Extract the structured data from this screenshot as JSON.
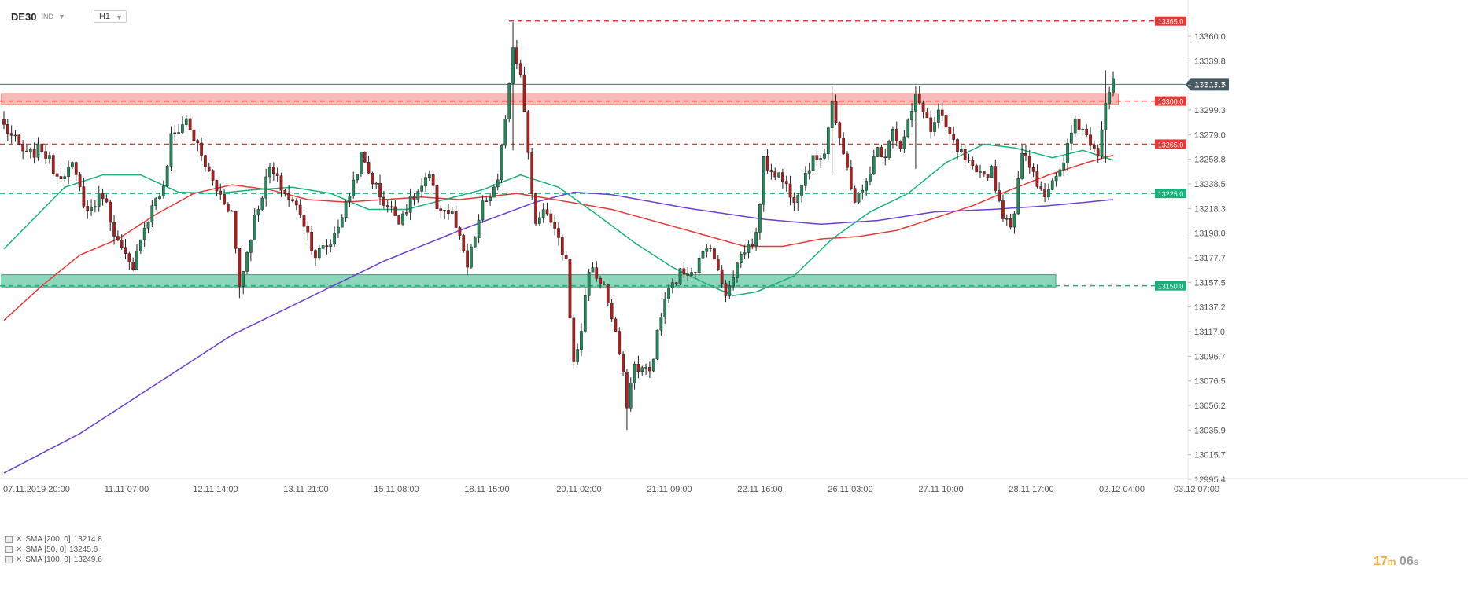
{
  "toolbar": {
    "symbol": "DE30",
    "badge": "IND",
    "timeframe": "H1"
  },
  "timer": {
    "minutes": "17",
    "m": "m",
    "seconds": "06",
    "s": "s"
  },
  "legend": [
    {
      "label": "SMA [200, 0]",
      "value": "13214.8",
      "color": "#6c3fd1"
    },
    {
      "label": "SMA [50, 0]",
      "value": "13245.6",
      "color": "#e53935"
    },
    {
      "label": "SMA [100, 0]",
      "value": "13249.6",
      "color": "#19b07a"
    }
  ],
  "chart_data": {
    "type": "candlestick",
    "symbol": "DE30",
    "timeframe": "H1",
    "y_ticks": [
      "13360.0",
      "13339.8",
      "13319.5",
      "13299.3",
      "13279.0",
      "13258.8",
      "13238.5",
      "13218.3",
      "13198.0",
      "13177.7",
      "13157.5",
      "13137.2",
      "13117.0",
      "13096.7",
      "13076.5",
      "13056.2",
      "13035.9",
      "13015.7",
      "12995.4"
    ],
    "x_ticks": [
      "07.11.2019  20:00",
      "11.11  07:00",
      "12.11  14:00",
      "13.11  21:00",
      "15.11  08:00",
      "18.11  15:00",
      "20.11  02:00",
      "21.11  09:00",
      "22.11  16:00",
      "26.11  03:00",
      "27.11  10:00",
      "28.11  17:00",
      "02.12  04:00",
      "03.12  07:00"
    ],
    "ylim": [
      12995.4,
      13368
    ],
    "last_price": {
      "value": 13313.5,
      "label": "13313.5"
    },
    "levels": [
      {
        "value": 13365.0,
        "label": "13365.0",
        "color": "#e53935"
      },
      {
        "value": 13300.0,
        "label": "13300.0",
        "color": "#e53935"
      },
      {
        "value": 13265.0,
        "label": "13265.0",
        "color": "#e53935"
      },
      {
        "value": 13225.0,
        "label": "13225.0",
        "color": "#19b07a"
      },
      {
        "value": 13150.0,
        "label": "13150.0",
        "color": "#19b07a"
      }
    ],
    "zones": [
      {
        "from": 13297,
        "to": 13306,
        "color": "#e53935",
        "opacity": 0.35
      },
      {
        "from": 13149,
        "to": 13159,
        "color": "#19b07a",
        "opacity": 0.5
      }
    ],
    "anchors": [
      [
        0,
        13280
      ],
      [
        6,
        13255
      ],
      [
        10,
        13262
      ],
      [
        14,
        13240
      ],
      [
        18,
        13246
      ],
      [
        22,
        13210
      ],
      [
        26,
        13225
      ],
      [
        30,
        13185
      ],
      [
        34,
        13160
      ],
      [
        36,
        13192
      ],
      [
        38,
        13205
      ],
      [
        40,
        13222
      ],
      [
        42,
        13228
      ],
      [
        44,
        13270
      ],
      [
        48,
        13285
      ],
      [
        52,
        13255
      ],
      [
        56,
        13228
      ],
      [
        60,
        13210
      ],
      [
        62,
        13150
      ],
      [
        66,
        13205
      ],
      [
        70,
        13245
      ],
      [
        74,
        13225
      ],
      [
        78,
        13210
      ],
      [
        82,
        13175
      ],
      [
        86,
        13185
      ],
      [
        90,
        13215
      ],
      [
        94,
        13255
      ],
      [
        96,
        13242
      ],
      [
        100,
        13218
      ],
      [
        104,
        13205
      ],
      [
        108,
        13222
      ],
      [
        112,
        13238
      ],
      [
        114,
        13215
      ],
      [
        118,
        13208
      ],
      [
        122,
        13165
      ],
      [
        126,
        13215
      ],
      [
        130,
        13232
      ],
      [
        134,
        13345
      ],
      [
        136,
        13325
      ],
      [
        138,
        13255
      ],
      [
        140,
        13200
      ],
      [
        142,
        13215
      ],
      [
        146,
        13185
      ],
      [
        148,
        13170
      ],
      [
        150,
        13085
      ],
      [
        152,
        13115
      ],
      [
        154,
        13165
      ],
      [
        158,
        13150
      ],
      [
        162,
        13095
      ],
      [
        164,
        13055
      ],
      [
        166,
        13085
      ],
      [
        170,
        13080
      ],
      [
        174,
        13140
      ],
      [
        178,
        13160
      ],
      [
        182,
        13165
      ],
      [
        186,
        13185
      ],
      [
        188,
        13160
      ],
      [
        190,
        13145
      ],
      [
        194,
        13175
      ],
      [
        198,
        13190
      ],
      [
        200,
        13250
      ],
      [
        204,
        13240
      ],
      [
        208,
        13222
      ],
      [
        212,
        13248
      ],
      [
        216,
        13260
      ],
      [
        218,
        13300
      ],
      [
        220,
        13265
      ],
      [
        222,
        13245
      ],
      [
        224,
        13220
      ],
      [
        226,
        13225
      ],
      [
        228,
        13245
      ],
      [
        230,
        13260
      ],
      [
        232,
        13258
      ],
      [
        234,
        13280
      ],
      [
        236,
        13260
      ],
      [
        240,
        13302
      ],
      [
        242,
        13295
      ],
      [
        244,
        13275
      ],
      [
        246,
        13290
      ],
      [
        250,
        13265
      ],
      [
        254,
        13248
      ],
      [
        256,
        13238
      ],
      [
        258,
        13240
      ],
      [
        260,
        13245
      ],
      [
        262,
        13218
      ],
      [
        264,
        13200
      ],
      [
        266,
        13205
      ],
      [
        268,
        13262
      ],
      [
        270,
        13250
      ],
      [
        272,
        13235
      ],
      [
        274,
        13225
      ],
      [
        278,
        13240
      ],
      [
        282,
        13285
      ],
      [
        286,
        13268
      ],
      [
        288,
        13260
      ],
      [
        290,
        13300
      ],
      [
        292,
        13318
      ]
    ],
    "spikes": [
      [
        134,
        13364,
        13260
      ],
      [
        218,
        13312,
        13240
      ],
      [
        240,
        13312,
        13245
      ],
      [
        290,
        13325,
        13250
      ],
      [
        164,
        13060,
        13033
      ],
      [
        62,
        13160,
        13140
      ]
    ],
    "sma": [
      {
        "name": "SMA [200, 0]",
        "color": "#6c3fd1",
        "points": [
          [
            0,
            12998
          ],
          [
            20,
            13030
          ],
          [
            40,
            13070
          ],
          [
            60,
            13110
          ],
          [
            80,
            13140
          ],
          [
            100,
            13170
          ],
          [
            120,
            13195
          ],
          [
            140,
            13218
          ],
          [
            150,
            13226
          ],
          [
            160,
            13224
          ],
          [
            180,
            13213
          ],
          [
            200,
            13204
          ],
          [
            215,
            13200
          ],
          [
            230,
            13203
          ],
          [
            245,
            13210
          ],
          [
            260,
            13212
          ],
          [
            275,
            13215
          ],
          [
            292,
            13220
          ]
        ]
      },
      {
        "name": "SMA [50, 0]",
        "color": "#e53935",
        "points": [
          [
            0,
            13122
          ],
          [
            10,
            13150
          ],
          [
            20,
            13175
          ],
          [
            30,
            13188
          ],
          [
            40,
            13208
          ],
          [
            50,
            13225
          ],
          [
            60,
            13232
          ],
          [
            70,
            13228
          ],
          [
            80,
            13220
          ],
          [
            90,
            13218
          ],
          [
            100,
            13220
          ],
          [
            110,
            13222
          ],
          [
            120,
            13220
          ],
          [
            135,
            13225
          ],
          [
            145,
            13220
          ],
          [
            160,
            13212
          ],
          [
            180,
            13195
          ],
          [
            195,
            13182
          ],
          [
            205,
            13182
          ],
          [
            215,
            13188
          ],
          [
            225,
            13190
          ],
          [
            235,
            13195
          ],
          [
            245,
            13205
          ],
          [
            255,
            13215
          ],
          [
            265,
            13228
          ],
          [
            275,
            13240
          ],
          [
            285,
            13250
          ],
          [
            292,
            13256
          ]
        ]
      },
      {
        "name": "SMA [100, 0]",
        "color": "#19b07a",
        "points": [
          [
            0,
            13180
          ],
          [
            8,
            13205
          ],
          [
            16,
            13230
          ],
          [
            26,
            13240
          ],
          [
            36,
            13240
          ],
          [
            46,
            13226
          ],
          [
            56,
            13225
          ],
          [
            66,
            13228
          ],
          [
            76,
            13230
          ],
          [
            86,
            13225
          ],
          [
            96,
            13212
          ],
          [
            106,
            13212
          ],
          [
            116,
            13220
          ],
          [
            126,
            13228
          ],
          [
            136,
            13240
          ],
          [
            146,
            13230
          ],
          [
            156,
            13208
          ],
          [
            166,
            13185
          ],
          [
            176,
            13165
          ],
          [
            186,
            13150
          ],
          [
            192,
            13142
          ],
          [
            198,
            13145
          ],
          [
            208,
            13158
          ],
          [
            218,
            13188
          ],
          [
            228,
            13210
          ],
          [
            238,
            13225
          ],
          [
            248,
            13250
          ],
          [
            258,
            13265
          ],
          [
            266,
            13262
          ],
          [
            276,
            13254
          ],
          [
            284,
            13260
          ],
          [
            292,
            13252
          ]
        ]
      }
    ]
  }
}
